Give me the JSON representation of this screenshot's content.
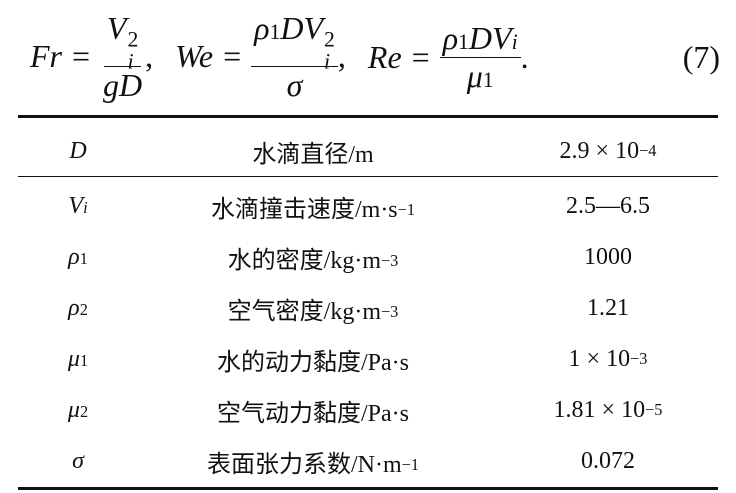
{
  "equation": {
    "parts": [
      {
        "lhs": "Fr",
        "relation": "=",
        "num": [
          {
            "b": "V",
            "sub": "i",
            "sup": "2"
          }
        ],
        "den": [
          {
            "b": "gD"
          }
        ],
        "punct": ","
      },
      {
        "lhs": "We",
        "relation": "=",
        "num": [
          {
            "b": "ρ",
            "sub": "1"
          },
          {
            "b": "DV",
            "sub": "i",
            "sup": "2"
          }
        ],
        "den": [
          {
            "b": "σ"
          }
        ],
        "punct": ","
      },
      {
        "lhs": "Re",
        "relation": "=",
        "num": [
          {
            "b": "ρ",
            "sub": "1"
          },
          {
            "b": "DV",
            "sub": "i"
          }
        ],
        "den": [
          {
            "b": "μ",
            "sub": "1"
          }
        ],
        "punct": "."
      }
    ],
    "number": "(7)"
  },
  "table": {
    "header": {
      "symbol": {
        "b": "D"
      },
      "quantity": {
        "text": "水滴直径/m"
      },
      "value": {
        "text": "2.9 × 10",
        "sup": "−4"
      }
    },
    "rows": [
      {
        "symbol": {
          "b": "V",
          "sub": "i"
        },
        "quantity": {
          "text": "水滴撞击速度/m·s",
          "sup": "−1"
        },
        "value": {
          "text": "2.5—6.5"
        }
      },
      {
        "symbol": {
          "b": "ρ",
          "sub": "1"
        },
        "quantity": {
          "text": "水的密度/kg·m",
          "sup": "−3"
        },
        "value": {
          "text": "1000"
        }
      },
      {
        "symbol": {
          "b": "ρ",
          "sub": "2"
        },
        "quantity": {
          "text": "空气密度/kg·m",
          "sup": "−3"
        },
        "value": {
          "text": "1.21"
        }
      },
      {
        "symbol": {
          "b": "μ",
          "sub": "1"
        },
        "quantity": {
          "text": "水的动力黏度/Pa·s"
        },
        "value": {
          "text": "1 × 10",
          "sup": "−3"
        }
      },
      {
        "symbol": {
          "b": "μ",
          "sub": "2"
        },
        "quantity": {
          "text": "空气动力黏度/Pa·s"
        },
        "value": {
          "text": "1.81 × 10",
          "sup": "−5"
        }
      },
      {
        "symbol": {
          "b": "σ"
        },
        "quantity": {
          "text": "表面张力系数/N·m",
          "sup": "−1"
        },
        "value": {
          "text": "0.072"
        }
      }
    ]
  }
}
